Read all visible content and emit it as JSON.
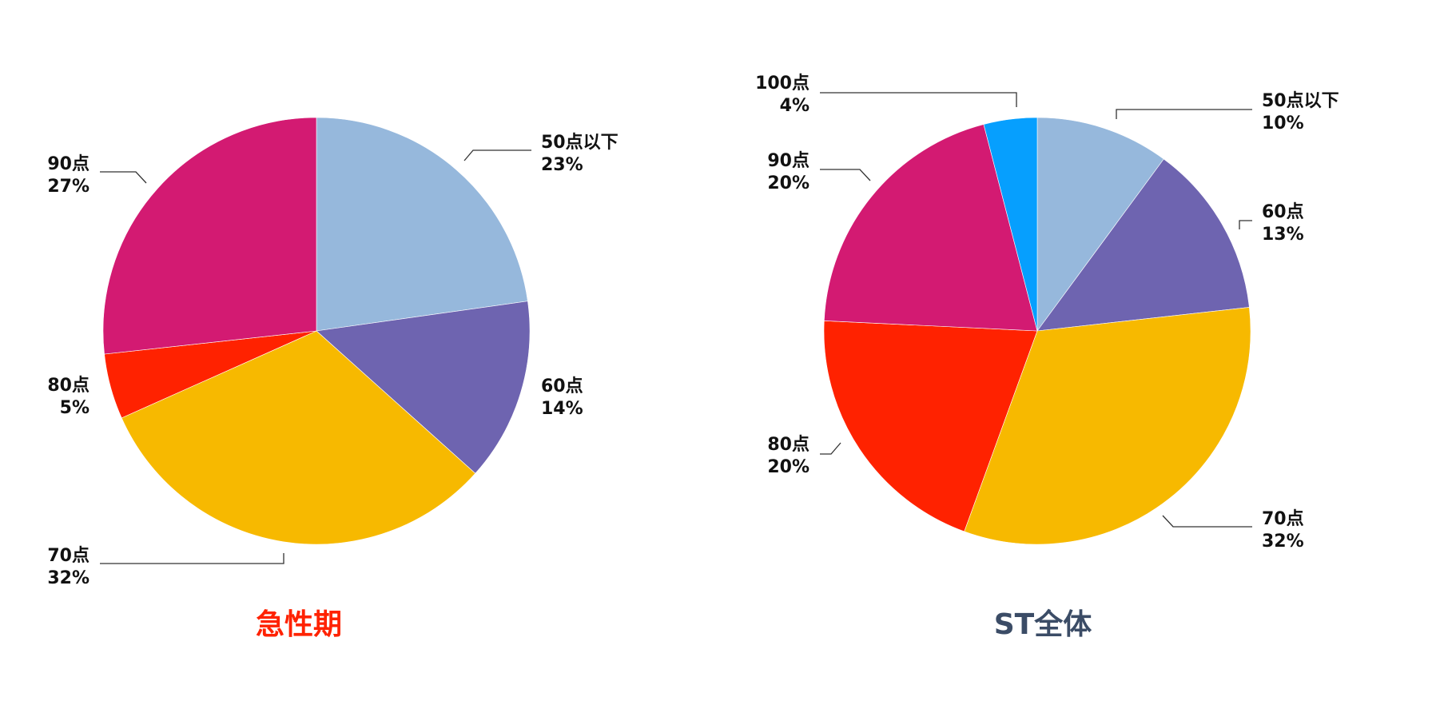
{
  "chart_data": [
    {
      "type": "pie",
      "title": "急性期",
      "title_color": "#ff2200",
      "start": "12 o'clock",
      "direction": "clockwise",
      "slices": [
        {
          "name": "50点以下",
          "value": 23,
          "label": "23%",
          "color": "#96b8dc"
        },
        {
          "name": "60点",
          "value": 14,
          "label": "14%",
          "color": "#6e64b0"
        },
        {
          "name": "70点",
          "value": 32,
          "label": "32%",
          "color": "#f7b900"
        },
        {
          "name": "80点",
          "value": 5,
          "label": "5%",
          "color": "#ff2200"
        },
        {
          "name": "90点",
          "value": 27,
          "label": "27%",
          "color": "#d31a72"
        }
      ]
    },
    {
      "type": "pie",
      "title": "ST全体",
      "title_color": "#3b4c66",
      "start": "12 o'clock",
      "direction": "clockwise",
      "slices": [
        {
          "name": "50点以下",
          "value": 10,
          "label": "10%",
          "color": "#96b8dc"
        },
        {
          "name": "60点",
          "value": 13,
          "label": "13%",
          "color": "#6e64b0"
        },
        {
          "name": "70点",
          "value": 32,
          "label": "32%",
          "color": "#f7b900"
        },
        {
          "name": "80点",
          "value": 20,
          "label": "20%",
          "color": "#ff2200"
        },
        {
          "name": "90点",
          "value": 20,
          "label": "20%",
          "color": "#d31a72"
        },
        {
          "name": "100点",
          "value": 4,
          "label": "4%",
          "color": "#069ffe"
        }
      ]
    }
  ]
}
